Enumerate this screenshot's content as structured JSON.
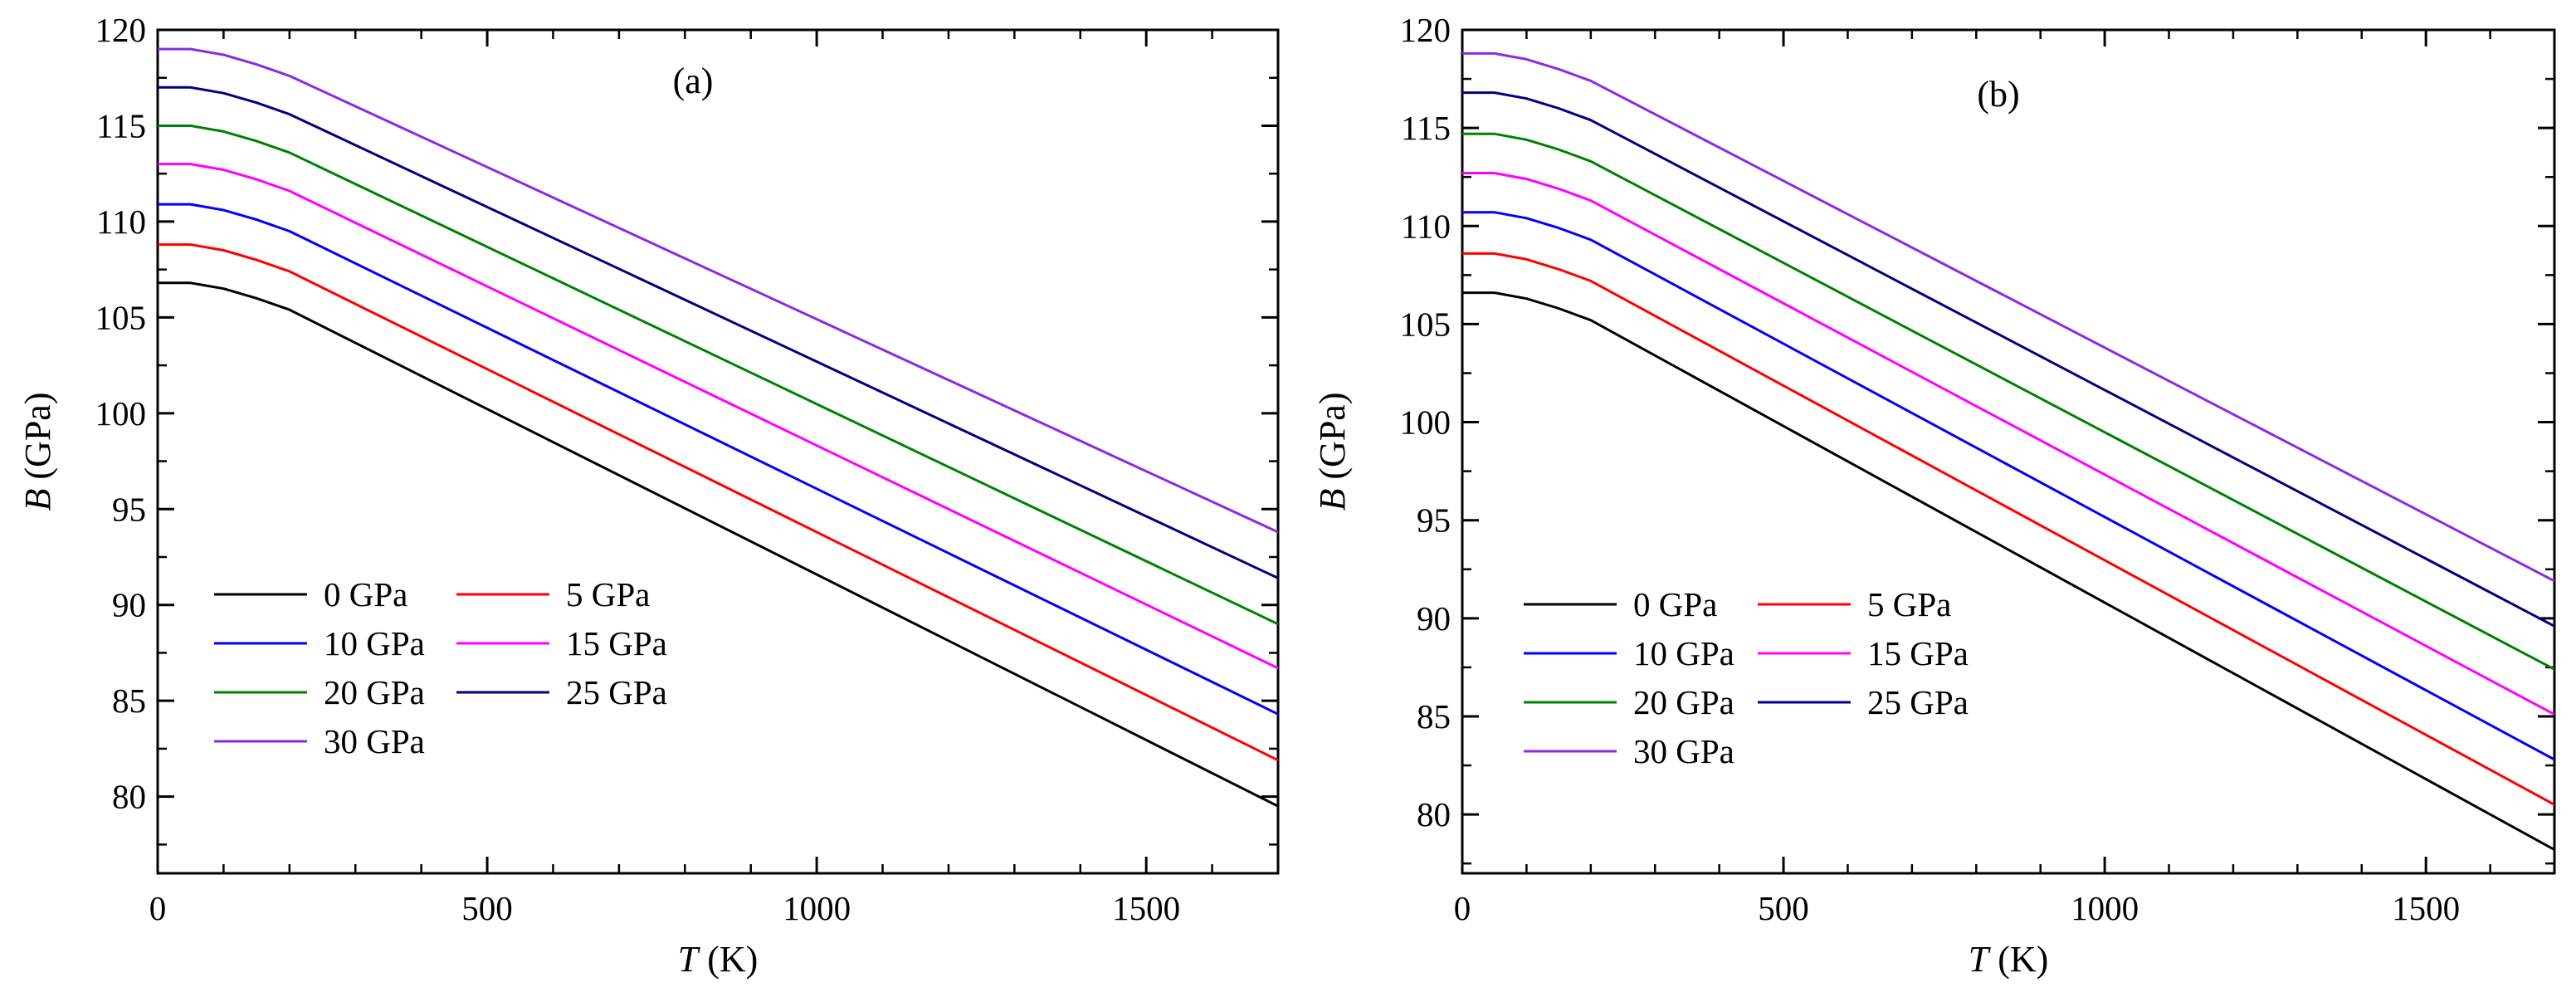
{
  "chart_data": [
    {
      "type": "line",
      "panel_label": "(a)",
      "xlabel_var": "T",
      "xlabel_unit": " (K)",
      "ylabel_var": "B",
      "ylabel_unit": " (GPa)",
      "xlim": [
        0,
        1700
      ],
      "ylim": [
        76,
        120
      ],
      "xticks": [
        0,
        500,
        1000,
        1500
      ],
      "yticks": [
        80,
        85,
        90,
        95,
        100,
        105,
        110,
        115,
        120
      ],
      "legend_position": "lower-left",
      "series": [
        {
          "name": "0 GPa",
          "color": "#000000",
          "points": [
            [
              0,
              106.8
            ],
            [
              50,
              106.8
            ],
            [
              100,
              106.5
            ],
            [
              150,
              106.0
            ],
            [
              200,
              105.4
            ],
            [
              1700,
              79.5
            ]
          ]
        },
        {
          "name": "5 GPa",
          "color": "#ff0000",
          "points": [
            [
              0,
              108.8
            ],
            [
              50,
              108.8
            ],
            [
              100,
              108.5
            ],
            [
              150,
              108.0
            ],
            [
              200,
              107.4
            ],
            [
              1700,
              81.9
            ]
          ]
        },
        {
          "name": "10 GPa",
          "color": "#0000ff",
          "points": [
            [
              0,
              110.9
            ],
            [
              50,
              110.9
            ],
            [
              100,
              110.6
            ],
            [
              150,
              110.1
            ],
            [
              200,
              109.5
            ],
            [
              1700,
              84.3
            ]
          ]
        },
        {
          "name": "15 GPa",
          "color": "#ff00ff",
          "points": [
            [
              0,
              113.0
            ],
            [
              50,
              113.0
            ],
            [
              100,
              112.7
            ],
            [
              150,
              112.2
            ],
            [
              200,
              111.6
            ],
            [
              1700,
              86.7
            ]
          ]
        },
        {
          "name": "20 GPa",
          "color": "#008000",
          "points": [
            [
              0,
              115.0
            ],
            [
              50,
              115.0
            ],
            [
              100,
              114.7
            ],
            [
              150,
              114.2
            ],
            [
              200,
              113.6
            ],
            [
              1700,
              89.0
            ]
          ]
        },
        {
          "name": "25 GPa",
          "color": "#000080",
          "points": [
            [
              0,
              117.0
            ],
            [
              50,
              117.0
            ],
            [
              100,
              116.7
            ],
            [
              150,
              116.2
            ],
            [
              200,
              115.6
            ],
            [
              1700,
              91.4
            ]
          ]
        },
        {
          "name": "30 GPa",
          "color": "#8a2be2",
          "points": [
            [
              0,
              119.0
            ],
            [
              50,
              119.0
            ],
            [
              100,
              118.7
            ],
            [
              150,
              118.2
            ],
            [
              200,
              117.6
            ],
            [
              1700,
              93.8
            ]
          ]
        }
      ]
    },
    {
      "type": "line",
      "panel_label": "(b)",
      "xlabel_var": "T",
      "xlabel_unit": " (K)",
      "ylabel_var": "B",
      "ylabel_unit": " (GPa)",
      "xlim": [
        0,
        1700
      ],
      "ylim": [
        77,
        120
      ],
      "xticks": [
        0,
        500,
        1000,
        1500
      ],
      "yticks": [
        80,
        85,
        90,
        95,
        100,
        105,
        110,
        115,
        120
      ],
      "legend_position": "lower-left",
      "series": [
        {
          "name": "0 GPa",
          "color": "#000000",
          "points": [
            [
              0,
              106.6
            ],
            [
              50,
              106.6
            ],
            [
              100,
              106.3
            ],
            [
              150,
              105.8
            ],
            [
              200,
              105.2
            ],
            [
              1700,
              78.2
            ]
          ]
        },
        {
          "name": "5 GPa",
          "color": "#ff0000",
          "points": [
            [
              0,
              108.6
            ],
            [
              50,
              108.6
            ],
            [
              100,
              108.3
            ],
            [
              150,
              107.8
            ],
            [
              200,
              107.2
            ],
            [
              1700,
              80.5
            ]
          ]
        },
        {
          "name": "10 GPa",
          "color": "#0000ff",
          "points": [
            [
              0,
              110.7
            ],
            [
              50,
              110.7
            ],
            [
              100,
              110.4
            ],
            [
              150,
              109.9
            ],
            [
              200,
              109.3
            ],
            [
              1700,
              82.8
            ]
          ]
        },
        {
          "name": "15 GPa",
          "color": "#ff00ff",
          "points": [
            [
              0,
              112.7
            ],
            [
              50,
              112.7
            ],
            [
              100,
              112.4
            ],
            [
              150,
              111.9
            ],
            [
              200,
              111.3
            ],
            [
              1700,
              85.1
            ]
          ]
        },
        {
          "name": "20 GPa",
          "color": "#008000",
          "points": [
            [
              0,
              114.7
            ],
            [
              50,
              114.7
            ],
            [
              100,
              114.4
            ],
            [
              150,
              113.9
            ],
            [
              200,
              113.3
            ],
            [
              1700,
              87.4
            ]
          ]
        },
        {
          "name": "25 GPa",
          "color": "#000080",
          "points": [
            [
              0,
              116.8
            ],
            [
              50,
              116.8
            ],
            [
              100,
              116.5
            ],
            [
              150,
              116.0
            ],
            [
              200,
              115.4
            ],
            [
              1700,
              89.6
            ]
          ]
        },
        {
          "name": "30 GPa",
          "color": "#8a2be2",
          "points": [
            [
              0,
              118.8
            ],
            [
              50,
              118.8
            ],
            [
              100,
              118.5
            ],
            [
              150,
              118.0
            ],
            [
              200,
              117.4
            ],
            [
              1700,
              91.9
            ]
          ]
        }
      ]
    }
  ]
}
